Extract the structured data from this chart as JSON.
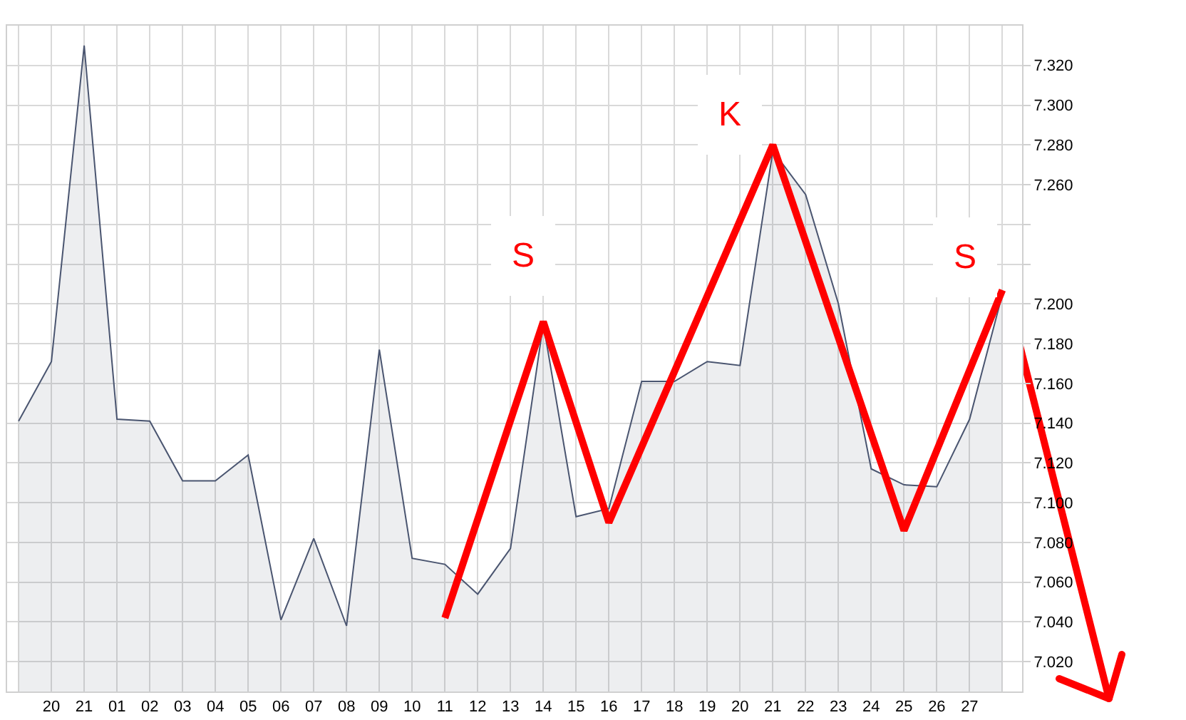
{
  "chart_data": {
    "type": "area",
    "categories": [
      null,
      "20",
      "21",
      "01",
      "02",
      "03",
      "04",
      "05",
      "06",
      "07",
      "08",
      "09",
      "10",
      "11",
      "12",
      "13",
      "14",
      "15",
      "16",
      "17",
      "18",
      "19",
      "20",
      "21",
      "22",
      "23",
      "24",
      "25",
      "26",
      "27",
      null
    ],
    "series": [
      {
        "color": "#4a5570",
        "values": [
          7141,
          7171,
          7330,
          7142,
          7141,
          7111,
          7111,
          7124,
          7041,
          7082,
          7038,
          7177,
          7072,
          7069,
          7054,
          7077,
          7190,
          7093,
          7097,
          7161,
          7161,
          7171,
          7169,
          7277,
          7255,
          7200,
          7117,
          7109,
          7108,
          7142,
          7205
        ]
      },
      {
        "type": "line",
        "color": "#ff0000",
        "values": [
          null,
          null,
          null,
          null,
          null,
          null,
          null,
          null,
          null,
          null,
          null,
          null,
          null,
          7042,
          null,
          null,
          7191,
          null,
          7090,
          null,
          null,
          null,
          null,
          7280,
          null,
          null,
          null,
          7086,
          null,
          null,
          7207
        ]
      }
    ],
    "ylim": [
      7005,
      7340
    ],
    "yticks": [
      {
        "value": 7020,
        "label": "7.020"
      },
      {
        "value": 7040,
        "label": "7.040"
      },
      {
        "value": 7060,
        "label": "7.060"
      },
      {
        "value": 7080,
        "label": "7.080"
      },
      {
        "value": 7100,
        "label": "7.100"
      },
      {
        "value": 7120,
        "label": "7.120"
      },
      {
        "value": 7140,
        "label": "7.140"
      },
      {
        "value": 7160,
        "label": "7.160"
      },
      {
        "value": 7180,
        "label": "7.180"
      },
      {
        "value": 7200,
        "label": "7.200"
      },
      {
        "value": 7220,
        "label": null
      },
      {
        "value": 7240,
        "label": null
      },
      {
        "value": 7260,
        "label": "7.260"
      },
      {
        "value": 7280,
        "label": "7.280"
      },
      {
        "value": 7300,
        "label": "7.300"
      },
      {
        "value": 7320,
        "label": "7.320"
      }
    ],
    "annotations": [
      "S",
      "K",
      "S"
    ],
    "grid": true,
    "legend": false
  }
}
